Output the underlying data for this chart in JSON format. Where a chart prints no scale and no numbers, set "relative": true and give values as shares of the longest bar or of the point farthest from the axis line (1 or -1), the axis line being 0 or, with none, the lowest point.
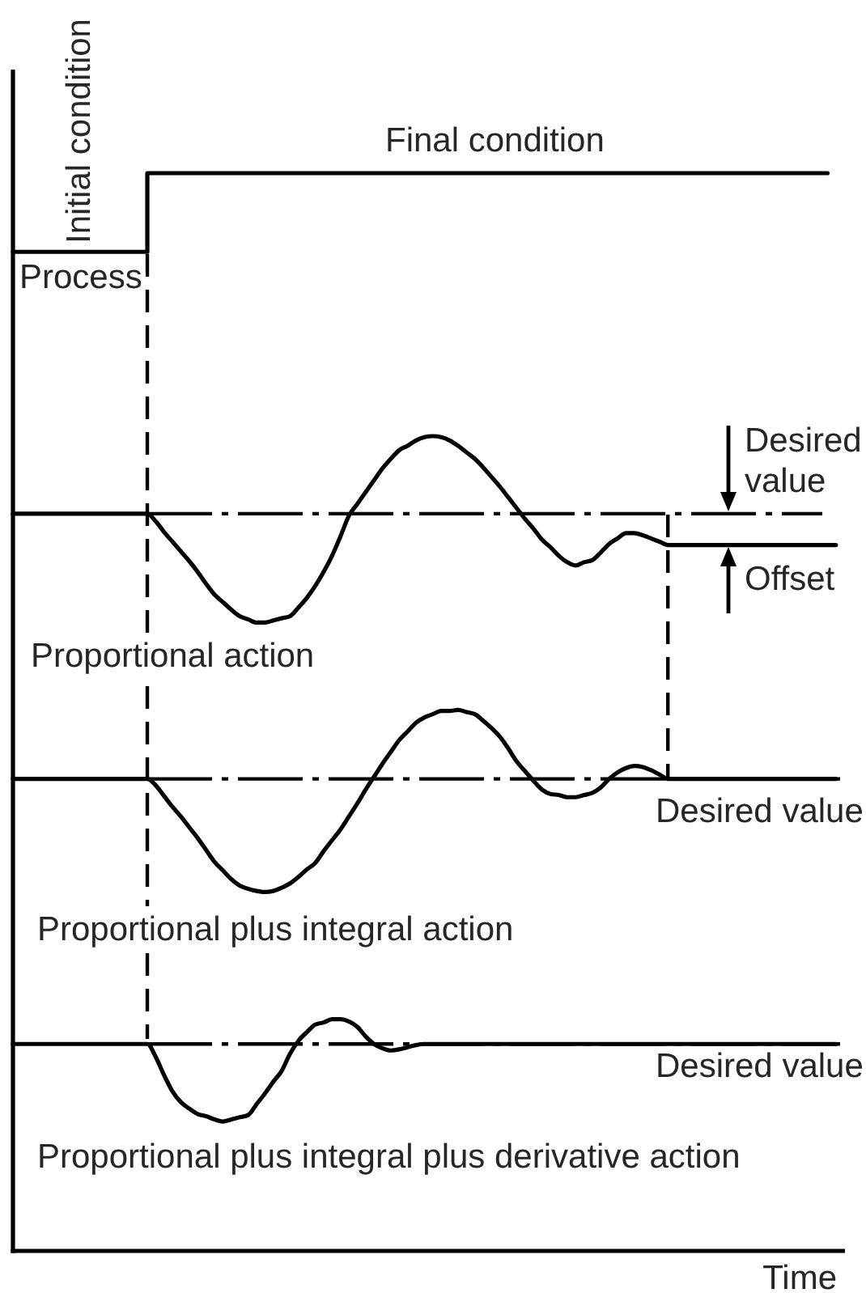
{
  "chart_data": {
    "type": "line",
    "relative": true,
    "xlabel": "Time",
    "annotations": [
      "Initial condition",
      "Final condition",
      "Desired value",
      "Offset"
    ],
    "categories": [
      null,
      null,
      null,
      null,
      null,
      null,
      null,
      null,
      null,
      null,
      null,
      null,
      null,
      null,
      null,
      null,
      null,
      null,
      null,
      null,
      null,
      null,
      null,
      null,
      null,
      null,
      null,
      null,
      null,
      null,
      null,
      null,
      null,
      null,
      null,
      null,
      null,
      null,
      null,
      null,
      null,
      null,
      null,
      null,
      null,
      null,
      null,
      null,
      null,
      null,
      null,
      null,
      null,
      null,
      null,
      null,
      null,
      null,
      null,
      null,
      null,
      null,
      null,
      null,
      null,
      null,
      null,
      null,
      null,
      null,
      null,
      null,
      null,
      null,
      null,
      null,
      null,
      null,
      null,
      null,
      null,
      null,
      null,
      null,
      null,
      null,
      null,
      null,
      null,
      null,
      null,
      null,
      null,
      null,
      null,
      null,
      null,
      null,
      null,
      null
    ],
    "series": [
      {
        "name": "Process",
        "type": "step",
        "color": "#000000",
        "values": [
          0.927,
          0.927,
          0.927,
          0.927,
          0.927,
          0.927,
          0.927,
          0.927,
          0.927,
          0.927,
          0.927,
          0.927,
          0.927,
          0.927,
          0.927,
          0.927,
          1,
          1,
          1,
          1,
          1,
          1,
          1,
          1,
          1,
          1,
          1,
          1,
          1,
          1,
          1,
          1,
          1,
          1,
          1,
          1,
          1,
          1,
          1,
          1,
          1,
          1,
          1,
          1,
          1,
          1,
          1,
          1,
          1,
          1,
          1,
          1,
          1,
          1,
          1,
          1,
          1,
          1,
          1,
          1,
          1,
          1,
          1,
          1,
          1,
          1,
          1,
          1,
          1,
          1,
          1,
          1,
          1,
          1,
          1,
          1,
          1,
          1,
          1,
          1,
          1,
          1,
          1,
          1,
          1,
          1,
          1,
          1,
          1,
          1,
          1,
          1,
          1,
          1,
          1,
          1,
          1,
          1,
          null,
          null
        ]
      },
      {
        "name": "Proportional action",
        "color": "#000000",
        "values": [
          0.684,
          0.684,
          0.684,
          0.684,
          0.684,
          0.684,
          0.684,
          0.684,
          0.684,
          0.684,
          0.684,
          0.684,
          0.684,
          0.684,
          0.684,
          0.684,
          0.684,
          0.677,
          0.667,
          0.658,
          0.649,
          0.64,
          0.63,
          0.619,
          0.609,
          0.602,
          0.595,
          0.589,
          0.586,
          0.583,
          0.583,
          0.585,
          0.587,
          0.589,
          0.597,
          0.606,
          0.617,
          0.63,
          0.645,
          0.663,
          0.682,
          0.693,
          0.704,
          0.715,
          0.726,
          0.735,
          0.743,
          0.747,
          0.752,
          0.755,
          0.756,
          0.755,
          0.752,
          0.747,
          0.741,
          0.735,
          0.727,
          0.718,
          0.709,
          0.699,
          0.689,
          0.679,
          0.67,
          0.66,
          0.653,
          0.645,
          0.639,
          0.636,
          0.639,
          0.641,
          0.648,
          0.656,
          0.661,
          0.666,
          0.666,
          0.664,
          0.661,
          0.658,
          0.655,
          0.655,
          0.655,
          0.655,
          0.655,
          0.655,
          0.655,
          0.655,
          0.655,
          0.655,
          0.655,
          0.655,
          0.655,
          0.655,
          0.655,
          0.655,
          0.655,
          0.655,
          0.655,
          0.655,
          0.655,
          null
        ]
      },
      {
        "name": "Proportional plus integral action",
        "color": "#000000",
        "values": [
          0.438,
          0.438,
          0.438,
          0.438,
          0.438,
          0.438,
          0.438,
          0.438,
          0.438,
          0.438,
          0.438,
          0.438,
          0.438,
          0.438,
          0.438,
          0.438,
          0.438,
          0.432,
          0.422,
          0.412,
          0.403,
          0.393,
          0.383,
          0.372,
          0.361,
          0.353,
          0.345,
          0.339,
          0.336,
          0.334,
          0.333,
          0.334,
          0.337,
          0.341,
          0.347,
          0.354,
          0.36,
          0.371,
          0.381,
          0.391,
          0.403,
          0.415,
          0.428,
          0.44,
          0.452,
          0.463,
          0.474,
          0.482,
          0.49,
          0.495,
          0.498,
          0.501,
          0.501,
          0.502,
          0.5,
          0.498,
          0.492,
          0.485,
          0.477,
          0.466,
          0.454,
          0.445,
          0.436,
          0.428,
          0.424,
          0.423,
          0.421,
          0.421,
          0.423,
          0.425,
          0.43,
          0.438,
          0.444,
          0.448,
          0.45,
          0.449,
          0.446,
          0.442,
          0.438,
          0.438,
          0.438,
          0.438,
          0.438,
          0.438,
          0.438,
          0.438,
          0.438,
          0.438,
          0.438,
          0.438,
          0.438,
          0.438,
          0.438,
          0.438,
          0.438,
          0.438,
          0.438,
          0.438,
          0.438,
          null
        ]
      },
      {
        "name": "Proportional plus integral plus derivative action",
        "color": "#000000",
        "values": [
          0.192,
          0.192,
          0.192,
          0.192,
          0.192,
          0.192,
          0.192,
          0.192,
          0.192,
          0.192,
          0.192,
          0.192,
          0.192,
          0.192,
          0.192,
          0.192,
          0.192,
          0.18,
          0.163,
          0.148,
          0.138,
          0.132,
          0.127,
          0.125,
          0.122,
          0.12,
          0.122,
          0.124,
          0.126,
          0.136,
          0.146,
          0.157,
          0.167,
          0.183,
          0.195,
          0.203,
          0.21,
          0.212,
          0.215,
          0.215,
          0.213,
          0.208,
          0.199,
          0.192,
          0.188,
          0.186,
          0.187,
          0.189,
          0.191,
          0.192,
          0.192,
          0.192,
          0.192,
          0.192,
          0.192,
          0.192,
          0.192,
          0.192,
          0.192,
          0.192,
          0.192,
          0.192,
          0.192,
          0.192,
          0.192,
          0.192,
          0.192,
          0.192,
          0.192,
          0.192,
          0.192,
          0.192,
          0.192,
          0.192,
          0.192,
          0.192,
          0.192,
          0.192,
          0.192,
          0.192,
          0.192,
          0.192,
          0.192,
          0.192,
          0.192,
          0.192,
          0.192,
          0.192,
          0.192,
          0.192,
          0.192,
          0.192,
          0.192,
          0.192,
          0.192,
          0.192,
          0.192,
          0.192,
          0.192,
          null
        ]
      }
    ],
    "ref_lines": [
      {
        "axis": "y",
        "value": 0.684,
        "line_style": "dashed",
        "color": "#000000"
      },
      {
        "axis": "y",
        "value": 0.438,
        "label": "Desired value",
        "line_style": "dashed",
        "color": "#000000"
      },
      {
        "axis": "y",
        "value": 0.192,
        "label": "Desired value",
        "line_style": "dashed",
        "color": "#000000"
      }
    ]
  }
}
